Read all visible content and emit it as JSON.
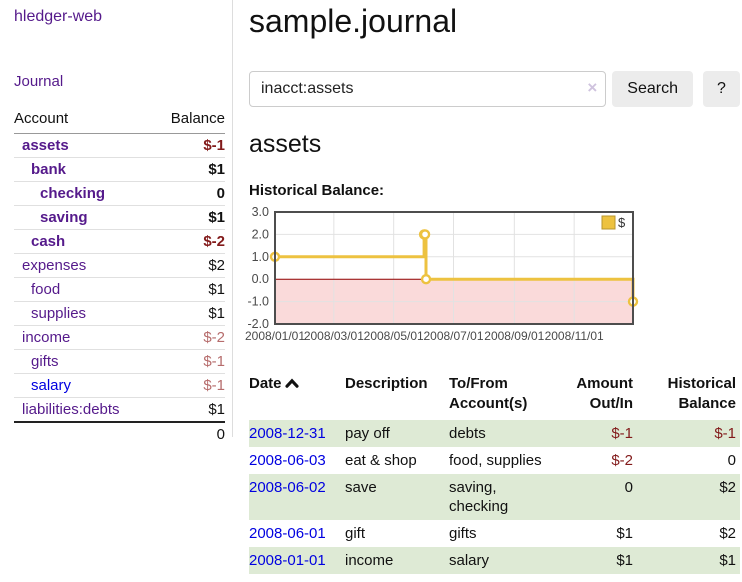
{
  "sidebar": {
    "app_link": "hledger-web",
    "journal_link": "Journal",
    "table": {
      "account_header": "Account",
      "balance_header": "Balance",
      "rows": [
        {
          "name": "assets",
          "indent": 1,
          "bold": true,
          "balance": "$-1",
          "neg": "strong"
        },
        {
          "name": "bank",
          "indent": 2,
          "bold": true,
          "balance": "$1",
          "neg": "none"
        },
        {
          "name": "checking",
          "indent": 3,
          "bold": true,
          "balance": "0",
          "neg": "none"
        },
        {
          "name": "saving",
          "indent": 3,
          "bold": true,
          "balance": "$1",
          "neg": "none"
        },
        {
          "name": "cash",
          "indent": 2,
          "bold": true,
          "balance": "$-2",
          "neg": "strong"
        },
        {
          "name": "expenses",
          "indent": 1,
          "bold": false,
          "balance": "$2",
          "neg": "none"
        },
        {
          "name": "food",
          "indent": 2,
          "bold": false,
          "balance": "$1",
          "neg": "none"
        },
        {
          "name": "supplies",
          "indent": 2,
          "bold": false,
          "balance": "$1",
          "neg": "none"
        },
        {
          "name": "income",
          "indent": 1,
          "bold": false,
          "balance": "$-2",
          "neg": "weak"
        },
        {
          "name": "gifts",
          "indent": 2,
          "bold": false,
          "balance": "$-1",
          "neg": "weak"
        },
        {
          "name": "salary",
          "indent": 2,
          "bold": false,
          "balance": "$-1",
          "neg": "weak",
          "link_style": "unvisited"
        },
        {
          "name": "liabilities:debts",
          "indent": 1,
          "bold": false,
          "balance": "$1",
          "neg": "none"
        }
      ],
      "total": "0"
    }
  },
  "header": {
    "title": "sample.journal"
  },
  "search": {
    "value": "inacct:assets",
    "clear_icon": "×",
    "button_label": "Search",
    "help_label": "?"
  },
  "account_page": {
    "heading": "assets",
    "chart_label": "Historical Balance:"
  },
  "chart_data": {
    "type": "line",
    "title": "Historical Balance",
    "x_range": [
      "2008-01-01",
      "2008-12-31"
    ],
    "ylim": [
      -2,
      3
    ],
    "y_ticks": [
      3.0,
      2.0,
      1.0,
      0.0,
      -1.0,
      -2.0
    ],
    "x_ticks": [
      "2008-01-01",
      "2008-03-01",
      "2008-05-01",
      "2008-07-01",
      "2008-09-01",
      "2008-11-01"
    ],
    "x_tick_labels": [
      "2008/01/01",
      "2008/03/01",
      "2008/05/01",
      "2008/07/01",
      "2008/09/01",
      "2008/11/01"
    ],
    "series": [
      {
        "name": "$",
        "style": "step",
        "points": [
          {
            "x": "2008-01-01",
            "y": 1
          },
          {
            "x": "2008-06-01",
            "y": 2
          },
          {
            "x": "2008-06-02",
            "y": 2
          },
          {
            "x": "2008-06-03",
            "y": 0
          },
          {
            "x": "2008-12-31",
            "y": -1
          }
        ]
      }
    ],
    "legend": {
      "label": "$",
      "position": "top-right",
      "swatch_color": "#edc240"
    },
    "colors": {
      "line": "#edc240",
      "marker_fill": "#ffffff",
      "negative_region": "#fadada",
      "zero_line": "#8f0000",
      "grid": "#e2e2e2",
      "plot_border": "#4d4d4d",
      "axis_text": "#4a4a4a"
    },
    "grid": true
  },
  "register": {
    "columns": {
      "date": "Date",
      "sort_icon": "chevron-up",
      "description": "Description",
      "account": "To/From Account(s)",
      "amount": "Amount Out/In",
      "balance": "Historical Balance"
    },
    "rows": [
      {
        "date": "2008-12-31",
        "description": "pay off",
        "account": "debts",
        "amount": "$-1",
        "amount_neg": true,
        "balance": "$-1",
        "balance_neg": true
      },
      {
        "date": "2008-06-03",
        "description": "eat & shop",
        "account": "food, supplies",
        "amount": "$-2",
        "amount_neg": true,
        "balance": "0",
        "balance_neg": false
      },
      {
        "date": "2008-06-02",
        "description": "save",
        "account": "saving, checking",
        "amount": "0",
        "amount_neg": false,
        "balance": "$2",
        "balance_neg": false
      },
      {
        "date": "2008-06-01",
        "description": "gift",
        "account": "gifts",
        "amount": "$1",
        "amount_neg": false,
        "balance": "$2",
        "balance_neg": false
      },
      {
        "date": "2008-01-01",
        "description": "income",
        "account": "salary",
        "amount": "$1",
        "amount_neg": false,
        "balance": "$1",
        "balance_neg": false
      }
    ]
  }
}
